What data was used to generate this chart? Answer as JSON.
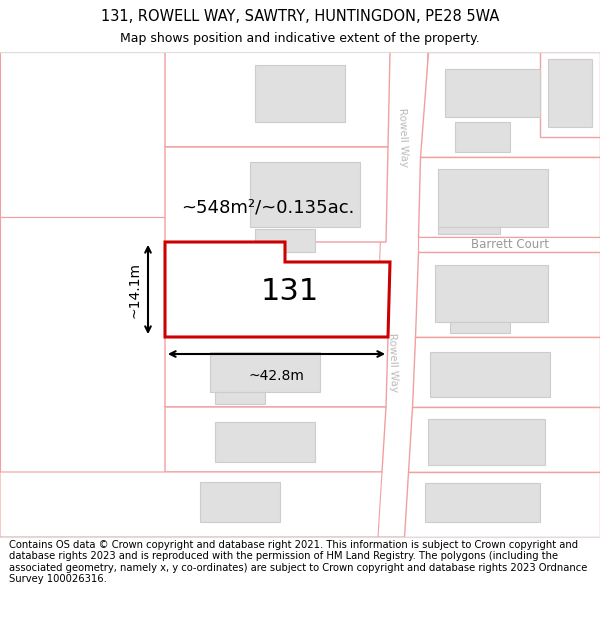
{
  "title_line1": "131, ROWELL WAY, SAWTRY, HUNTINGDON, PE28 5WA",
  "title_line2": "Map shows position and indicative extent of the property.",
  "footer_text": "Contains OS data © Crown copyright and database right 2021. This information is subject to Crown copyright and database rights 2023 and is reproduced with the permission of HM Land Registry. The polygons (including the associated geometry, namely x, y co-ordinates) are subject to Crown copyright and database rights 2023 Ordnance Survey 100026316.",
  "area_label": "~548m²/~0.135ac.",
  "width_label": "~42.8m",
  "height_label": "~14.1m",
  "plot_number": "131",
  "road_label1": "Rowell Way",
  "road_label2": "Rowell Way",
  "court_label": "Barrett Court",
  "map_bg": "#fdf5f5",
  "parcel_fill": "#ffffff",
  "parcel_edge": "#f0a0a0",
  "building_fill": "#e0e0e0",
  "building_edge": "#cccccc",
  "plot_fill": "#ffffff",
  "plot_edge": "#cc0000",
  "road_fill": "#ffffff",
  "road_label_color": "#bbbbbb",
  "court_label_color": "#999999",
  "title_fontsize": 10.5,
  "subtitle_fontsize": 9,
  "footer_fontsize": 7.2,
  "area_fontsize": 13,
  "number_fontsize": 22,
  "dim_fontsize": 10
}
